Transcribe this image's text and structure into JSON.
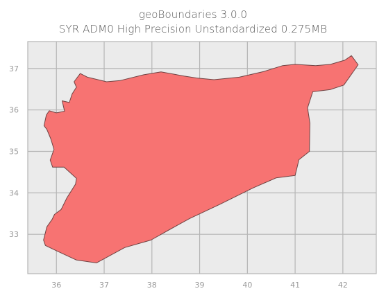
{
  "title": "geoBoundaries 3.0.0",
  "subtitle": "SYR ADM0 High Precision Unstandardized 0.275MB",
  "colors": {
    "plot_background": "#ebebeb",
    "grid": "#b5b5b5",
    "fill": "#f77372",
    "outline": "#6e4343",
    "tick_label": "#9a9a9a"
  },
  "chart_data": {
    "type": "map",
    "title": "geoBoundaries 3.0.0",
    "subtitle": "SYR ADM0 High Precision Unstandardized 0.275MB",
    "xlabel": "",
    "ylabel": "",
    "x_ticks": [
      36,
      37,
      38,
      39,
      40,
      41,
      42
    ],
    "y_ticks": [
      33,
      34,
      35,
      36,
      37
    ],
    "xlim": [
      35.4,
      42.7
    ],
    "ylim": [
      32.05,
      37.65
    ],
    "grid": true,
    "feature": {
      "name": "SYR ADM0",
      "outline_lonlat": [
        [
          35.74,
          35.62
        ],
        [
          35.79,
          35.88
        ],
        [
          35.85,
          35.98
        ],
        [
          36.0,
          35.93
        ],
        [
          36.17,
          35.97
        ],
        [
          36.12,
          36.22
        ],
        [
          36.27,
          36.18
        ],
        [
          36.33,
          36.39
        ],
        [
          36.42,
          36.55
        ],
        [
          36.37,
          36.68
        ],
        [
          36.5,
          36.88
        ],
        [
          36.65,
          36.79
        ],
        [
          37.05,
          36.68
        ],
        [
          37.34,
          36.71
        ],
        [
          37.83,
          36.85
        ],
        [
          38.19,
          36.92
        ],
        [
          38.67,
          36.82
        ],
        [
          38.94,
          36.77
        ],
        [
          39.3,
          36.73
        ],
        [
          39.83,
          36.79
        ],
        [
          40.35,
          36.93
        ],
        [
          40.74,
          37.07
        ],
        [
          41.0,
          37.1
        ],
        [
          41.43,
          37.07
        ],
        [
          41.74,
          37.1
        ],
        [
          42.04,
          37.2
        ],
        [
          42.18,
          37.31
        ],
        [
          42.32,
          37.09
        ],
        [
          42.02,
          36.6
        ],
        [
          41.73,
          36.49
        ],
        [
          41.37,
          36.44
        ],
        [
          41.26,
          36.05
        ],
        [
          41.31,
          35.68
        ],
        [
          41.3,
          35.0
        ],
        [
          41.08,
          34.8
        ],
        [
          41.0,
          34.42
        ],
        [
          40.6,
          34.36
        ],
        [
          40.12,
          34.12
        ],
        [
          39.42,
          33.72
        ],
        [
          38.79,
          33.38
        ],
        [
          38.38,
          33.12
        ],
        [
          37.98,
          32.86
        ],
        [
          37.43,
          32.68
        ],
        [
          36.84,
          32.31
        ],
        [
          36.42,
          32.38
        ],
        [
          35.97,
          32.62
        ],
        [
          35.77,
          32.73
        ],
        [
          35.73,
          32.86
        ],
        [
          35.8,
          33.18
        ],
        [
          35.91,
          33.36
        ],
        [
          35.96,
          33.48
        ],
        [
          36.1,
          33.6
        ],
        [
          36.22,
          33.88
        ],
        [
          36.4,
          34.21
        ],
        [
          36.42,
          34.35
        ],
        [
          36.16,
          34.62
        ],
        [
          35.92,
          34.62
        ],
        [
          35.87,
          34.79
        ],
        [
          35.95,
          35.05
        ],
        [
          35.88,
          35.31
        ],
        [
          35.8,
          35.53
        ],
        [
          35.74,
          35.62
        ]
      ]
    }
  }
}
